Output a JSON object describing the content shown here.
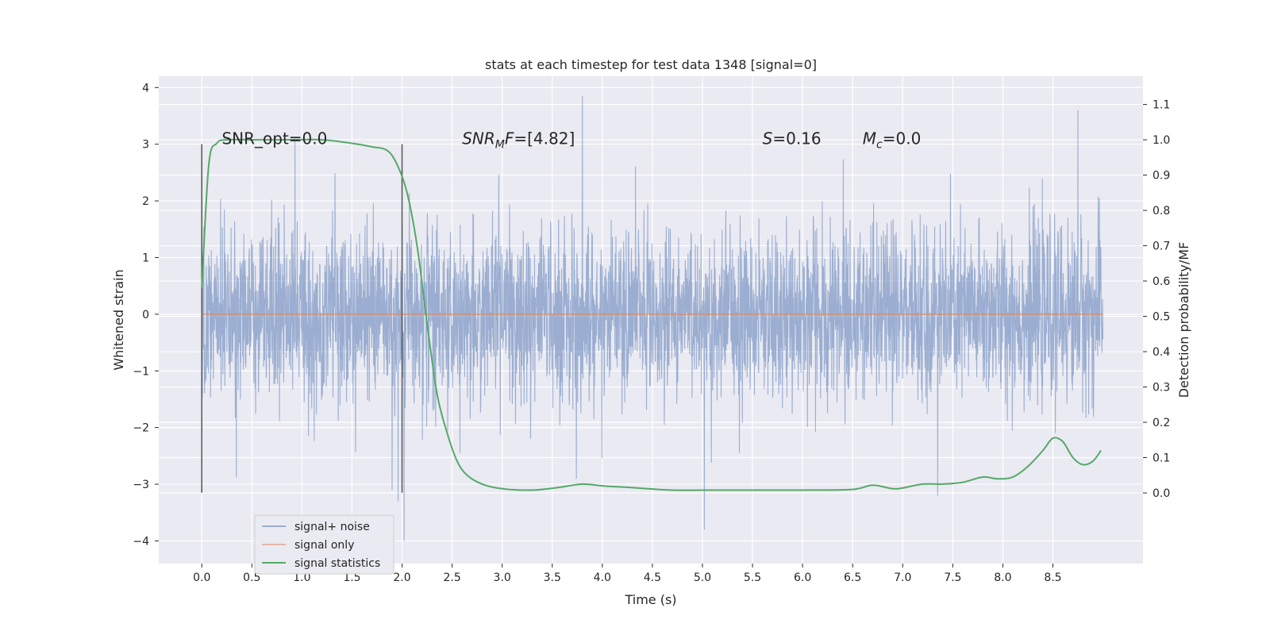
{
  "chart_data": {
    "type": "line",
    "title": "stats at each timestep for test data 1348 [signal=0]",
    "xlabel": "Time (s)",
    "ylabel": "Whitened strain",
    "ylabel_right": "Detection probability/MF",
    "xlim": [
      -0.43,
      9.4
    ],
    "ylim": [
      -4.4,
      4.2
    ],
    "ylim_right": [
      -0.2,
      1.18
    ],
    "xticks": [
      0.0,
      0.5,
      1.0,
      1.5,
      2.0,
      2.5,
      3.0,
      3.5,
      4.0,
      4.5,
      5.0,
      5.5,
      6.0,
      6.5,
      7.0,
      7.5,
      8.0,
      8.5
    ],
    "yticks": [
      -4,
      -3,
      -2,
      -1,
      0,
      1,
      2,
      3,
      4
    ],
    "yticks_right": [
      0.0,
      0.1,
      0.2,
      0.3,
      0.4,
      0.5,
      0.6,
      0.7,
      0.8,
      0.9,
      1.0,
      1.1
    ],
    "grid": true,
    "legend_position": "lower-left",
    "annotations": [
      {
        "parts": [
          {
            "t": "SNR_opt=0.0",
            "i": false
          }
        ],
        "x": 0.2,
        "y": 3.0
      },
      {
        "parts": [
          {
            "t": "SNR",
            "i": true
          },
          {
            "t": "M",
            "i": true,
            "sub": true
          },
          {
            "t": "F",
            "i": true
          },
          {
            "t": "=[4.82]",
            "i": false
          }
        ],
        "x": 2.6,
        "y": 3.0
      },
      {
        "parts": [
          {
            "t": "S",
            "i": true
          },
          {
            "t": "=0.16",
            "i": false
          }
        ],
        "x": 5.6,
        "y": 3.0
      },
      {
        "parts": [
          {
            "t": "M",
            "i": true
          },
          {
            "t": "c",
            "i": true,
            "sub": true
          },
          {
            "t": "=0.0",
            "i": false
          }
        ],
        "x": 6.6,
        "y": 3.0
      }
    ],
    "vlines": [
      {
        "x": 0.0,
        "ymin": -3.15,
        "ymax": 3.0
      },
      {
        "x": 2.0,
        "ymin": -3.15,
        "ymax": 3.0
      }
    ],
    "series": [
      {
        "name": "signal+ noise",
        "color": "#4c72b0",
        "kind": "noise",
        "x_range": [
          0.0,
          9.0
        ],
        "samples": 3600,
        "std": 0.75,
        "extremes": [
          [
            0.93,
            3.1
          ],
          [
            1.96,
            -3.3
          ],
          [
            2.02,
            -4.0
          ],
          [
            3.8,
            3.85
          ],
          [
            5.02,
            -3.8
          ],
          [
            8.75,
            3.6
          ],
          [
            1.9,
            -3.1
          ],
          [
            7.35,
            -3.2
          ]
        ]
      },
      {
        "name": "signal only",
        "color": "#dd8452",
        "x": [
          0.0,
          9.0
        ],
        "y": [
          0.0,
          0.0
        ]
      },
      {
        "name": "signal statistics",
        "color": "#55a868",
        "axis": "right",
        "x": [
          0.0,
          0.07,
          0.15,
          0.25,
          0.5,
          0.8,
          1.2,
          1.5,
          1.7,
          1.85,
          1.95,
          2.05,
          2.15,
          2.25,
          2.35,
          2.45,
          2.55,
          2.65,
          2.8,
          3.0,
          3.3,
          3.55,
          3.8,
          4.0,
          4.3,
          4.7,
          5.0,
          5.5,
          6.0,
          6.5,
          6.7,
          6.9,
          7.0,
          7.2,
          7.4,
          7.6,
          7.8,
          7.95,
          8.1,
          8.25,
          8.4,
          8.5,
          8.6,
          8.7,
          8.8,
          8.9,
          8.98
        ],
        "y": [
          0.58,
          0.93,
          0.99,
          1.0,
          1.0,
          1.0,
          1.0,
          0.99,
          0.98,
          0.97,
          0.93,
          0.85,
          0.7,
          0.48,
          0.28,
          0.17,
          0.09,
          0.05,
          0.025,
          0.012,
          0.008,
          0.015,
          0.025,
          0.02,
          0.015,
          0.008,
          0.008,
          0.008,
          0.008,
          0.01,
          0.022,
          0.012,
          0.014,
          0.025,
          0.025,
          0.03,
          0.045,
          0.04,
          0.045,
          0.075,
          0.12,
          0.155,
          0.145,
          0.1,
          0.08,
          0.09,
          0.12
        ]
      }
    ]
  }
}
